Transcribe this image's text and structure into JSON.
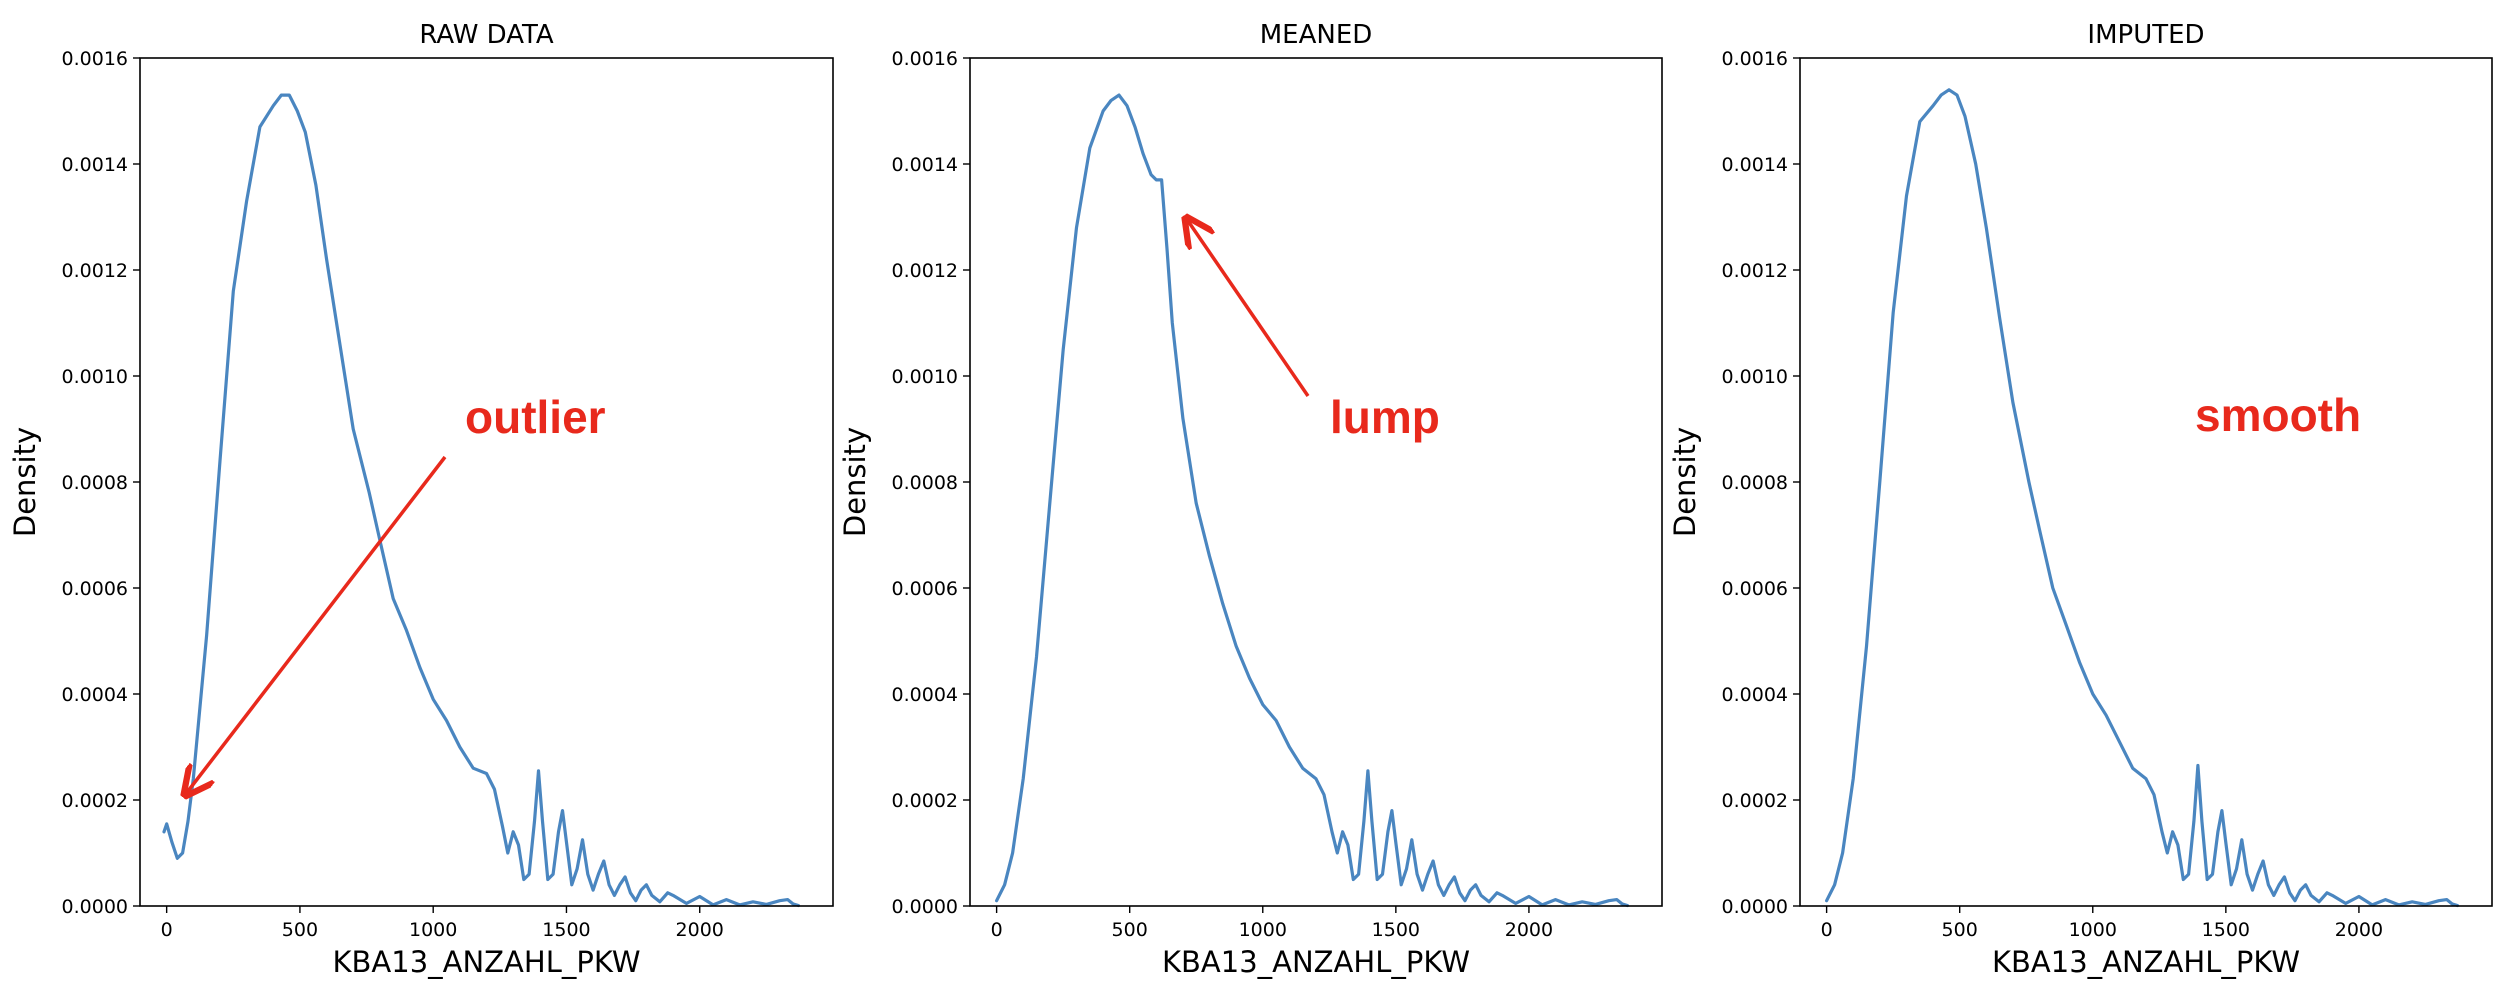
{
  "chart_data": [
    {
      "type": "line",
      "title": "RAW DATA",
      "xlabel": "KBA13_ANZAHL_PKW",
      "ylabel": "Density",
      "xlim": [
        -100,
        2500
      ],
      "ylim": [
        0,
        0.0016
      ],
      "xticks": [
        0,
        500,
        1000,
        1500,
        2000
      ],
      "yticks": [
        0,
        0.0002,
        0.0004,
        0.0006,
        0.0008,
        0.001,
        0.0012,
        0.0014,
        0.0016
      ],
      "xtick_labels": [
        "0",
        "500",
        "1000",
        "1500",
        "2000"
      ],
      "ytick_labels": [
        "0.0000",
        "0.0002",
        "0.0004",
        "0.0006",
        "0.0008",
        "0.0010",
        "0.0012",
        "0.0014",
        "0.0016"
      ],
      "grid": false,
      "line_color": "#4a86c0",
      "x": [
        -10,
        0,
        20,
        40,
        60,
        80,
        100,
        150,
        200,
        250,
        300,
        350,
        400,
        430,
        460,
        490,
        520,
        560,
        600,
        650,
        700,
        760,
        800,
        850,
        900,
        950,
        1000,
        1050,
        1100,
        1150,
        1200,
        1230,
        1260,
        1280,
        1300,
        1320,
        1340,
        1360,
        1380,
        1395,
        1410,
        1430,
        1450,
        1470,
        1485,
        1500,
        1520,
        1540,
        1560,
        1580,
        1600,
        1620,
        1640,
        1660,
        1680,
        1700,
        1720,
        1740,
        1760,
        1780,
        1800,
        1820,
        1850,
        1880,
        1900,
        1950,
        2000,
        2050,
        2100,
        2150,
        2200,
        2250,
        2300,
        2330,
        2350,
        2370
      ],
      "values": [
        0.00014,
        0.000155,
        0.00012,
        9e-05,
        0.0001,
        0.00016,
        0.00024,
        0.00051,
        0.00084,
        0.00116,
        0.00133,
        0.00147,
        0.00151,
        0.00153,
        0.00153,
        0.0015,
        0.00146,
        0.00136,
        0.00122,
        0.00106,
        0.0009,
        0.00078,
        0.00069,
        0.00058,
        0.00052,
        0.00045,
        0.00039,
        0.00035,
        0.0003,
        0.00026,
        0.00025,
        0.00022,
        0.00015,
        0.0001,
        0.00014,
        0.000115,
        5e-05,
        6e-05,
        0.00016,
        0.000255,
        0.00016,
        5e-05,
        6e-05,
        0.00014,
        0.00018,
        0.00012,
        4e-05,
        7e-05,
        0.000125,
        6e-05,
        3e-05,
        6e-05,
        8.5e-05,
        4e-05,
        2e-05,
        4e-05,
        5.5e-05,
        2.5e-05,
        1e-05,
        3e-05,
        4e-05,
        2e-05,
        8e-06,
        2.5e-05,
        2e-05,
        5e-06,
        1.8e-05,
        2e-06,
        1.2e-05,
        2e-06,
        8e-06,
        3e-06,
        1e-05,
        1.2e-05,
        4e-06,
        1e-06
      ]
    },
    {
      "type": "line",
      "title": "MEANED",
      "xlabel": "KBA13_ANZAHL_PKW",
      "ylabel": "Density",
      "xlim": [
        -100,
        2500
      ],
      "ylim": [
        0,
        0.0016
      ],
      "xticks": [
        0,
        500,
        1000,
        1500,
        2000
      ],
      "yticks": [
        0,
        0.0002,
        0.0004,
        0.0006,
        0.0008,
        0.001,
        0.0012,
        0.0014,
        0.0016
      ],
      "xtick_labels": [
        "0",
        "500",
        "1000",
        "1500",
        "2000"
      ],
      "ytick_labels": [
        "0.0000",
        "0.0002",
        "0.0004",
        "0.0006",
        "0.0008",
        "0.0010",
        "0.0012",
        "0.0014",
        "0.0016"
      ],
      "grid": false,
      "line_color": "#4a86c0",
      "x": [
        0,
        30,
        60,
        100,
        150,
        200,
        250,
        300,
        350,
        400,
        430,
        460,
        490,
        520,
        550,
        580,
        600,
        620,
        640,
        660,
        700,
        750,
        800,
        850,
        900,
        950,
        1000,
        1050,
        1100,
        1150,
        1200,
        1230,
        1260,
        1280,
        1300,
        1320,
        1340,
        1360,
        1380,
        1395,
        1410,
        1430,
        1450,
        1470,
        1485,
        1500,
        1520,
        1540,
        1560,
        1580,
        1600,
        1620,
        1640,
        1660,
        1680,
        1700,
        1720,
        1740,
        1760,
        1780,
        1800,
        1820,
        1850,
        1880,
        1900,
        1950,
        2000,
        2050,
        2100,
        2150,
        2200,
        2250,
        2300,
        2330,
        2350,
        2370
      ],
      "values": [
        1e-05,
        4e-05,
        0.0001,
        0.00024,
        0.00047,
        0.00076,
        0.00105,
        0.00128,
        0.00143,
        0.0015,
        0.00152,
        0.00153,
        0.00151,
        0.00147,
        0.00142,
        0.00138,
        0.00137,
        0.00137,
        0.00124,
        0.0011,
        0.00092,
        0.00076,
        0.00066,
        0.00057,
        0.00049,
        0.00043,
        0.00038,
        0.00035,
        0.0003,
        0.00026,
        0.00024,
        0.00021,
        0.00014,
        0.0001,
        0.00014,
        0.000115,
        5e-05,
        6e-05,
        0.00016,
        0.000255,
        0.00016,
        5e-05,
        6e-05,
        0.00014,
        0.00018,
        0.00012,
        4e-05,
        7e-05,
        0.000125,
        6e-05,
        3e-05,
        6e-05,
        8.5e-05,
        4e-05,
        2e-05,
        4e-05,
        5.5e-05,
        2.5e-05,
        1e-05,
        3e-05,
        4e-05,
        2e-05,
        8e-06,
        2.5e-05,
        2e-05,
        5e-06,
        1.8e-05,
        2e-06,
        1.2e-05,
        2e-06,
        8e-06,
        3e-06,
        1e-05,
        1.2e-05,
        4e-06,
        1e-06
      ]
    },
    {
      "type": "line",
      "title": "IMPUTED",
      "xlabel": "KBA13_ANZAHL_PKW",
      "ylabel": "Density",
      "xlim": [
        -100,
        2500
      ],
      "ylim": [
        0,
        0.0016
      ],
      "xticks": [
        0,
        500,
        1000,
        1500,
        2000
      ],
      "yticks": [
        0,
        0.0002,
        0.0004,
        0.0006,
        0.0008,
        0.001,
        0.0012,
        0.0014,
        0.0016
      ],
      "xtick_labels": [
        "0",
        "500",
        "1000",
        "1500",
        "2000"
      ],
      "ytick_labels": [
        "0.0000",
        "0.0002",
        "0.0004",
        "0.0006",
        "0.0008",
        "0.0010",
        "0.0012",
        "0.0014",
        "0.0016"
      ],
      "grid": false,
      "line_color": "#4a86c0",
      "x": [
        0,
        30,
        60,
        100,
        150,
        200,
        250,
        300,
        350,
        400,
        430,
        460,
        490,
        520,
        560,
        600,
        650,
        700,
        760,
        800,
        850,
        900,
        950,
        1000,
        1050,
        1100,
        1150,
        1200,
        1230,
        1260,
        1280,
        1300,
        1320,
        1340,
        1360,
        1380,
        1395,
        1410,
        1430,
        1450,
        1470,
        1485,
        1500,
        1520,
        1540,
        1560,
        1580,
        1600,
        1620,
        1640,
        1660,
        1680,
        1700,
        1720,
        1740,
        1760,
        1780,
        1800,
        1820,
        1850,
        1880,
        1900,
        1950,
        2000,
        2050,
        2100,
        2150,
        2200,
        2250,
        2300,
        2330,
        2350,
        2370
      ],
      "values": [
        1e-05,
        4e-05,
        0.0001,
        0.00024,
        0.00049,
        0.0008,
        0.00112,
        0.00134,
        0.00148,
        0.00151,
        0.00153,
        0.00154,
        0.00153,
        0.00149,
        0.0014,
        0.00128,
        0.00111,
        0.00095,
        0.0008,
        0.00071,
        0.0006,
        0.00053,
        0.00046,
        0.0004,
        0.00036,
        0.00031,
        0.00026,
        0.00024,
        0.00021,
        0.00014,
        0.0001,
        0.00014,
        0.000115,
        5e-05,
        6e-05,
        0.00016,
        0.000265,
        0.00016,
        5e-05,
        6e-05,
        0.00014,
        0.00018,
        0.00012,
        4e-05,
        7e-05,
        0.000125,
        6e-05,
        3e-05,
        6e-05,
        8.5e-05,
        4e-05,
        2e-05,
        4e-05,
        5.5e-05,
        2.5e-05,
        1e-05,
        3e-05,
        4e-05,
        2e-05,
        8e-06,
        2.5e-05,
        2e-05,
        5e-06,
        1.8e-05,
        2e-06,
        1.2e-05,
        2e-06,
        8e-06,
        3e-06,
        1e-05,
        1.2e-05,
        4e-06,
        1e-06
      ]
    }
  ],
  "annotations": [
    {
      "text": "outlier",
      "color": "#e8291c",
      "arrow_color": "#e8291c"
    },
    {
      "text": "lump",
      "color": "#e8291c",
      "arrow_color": "#e8291c"
    },
    {
      "text": "smooth",
      "color": "#e8291c"
    }
  ]
}
